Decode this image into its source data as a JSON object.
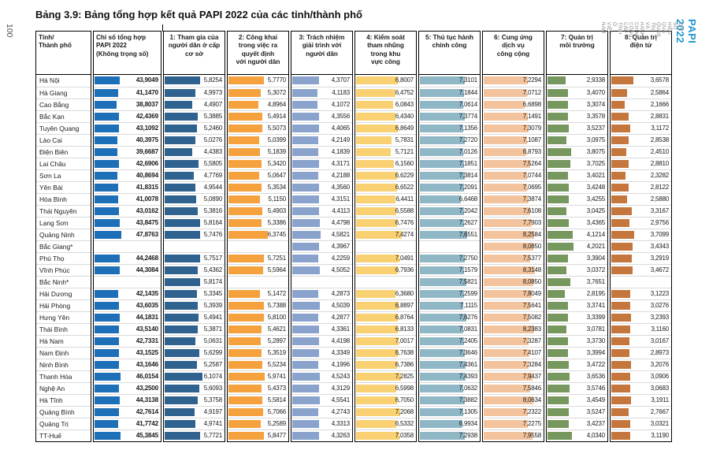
{
  "page": {
    "number": "100",
    "title": "Bảng 3.9: Bảng tổng hợp kết quả PAPI 2022 của các tỉnh/thành phố",
    "edge_title": "PAPI 2022",
    "edge_subtitle": "CHỈ SỐ HIỆU QUẢ QUẢN TRỊ VÀ HÀNH CHÍNH CÔNG CẤP TỈNH Ở VIỆT NAM"
  },
  "colors": {
    "edge_title": "#2196cd",
    "edge_subtitle": "#87898b",
    "table_border": "#000000",
    "row_divider": "#d9d9d9"
  },
  "chart_data": {
    "type": "table",
    "title": "Bảng 3.9: Bảng tổng hợp kết quả PAPI 2022 của các tỉnh/thành phố",
    "note": "Bars drawn per column; composite scored 0–80, sub-indices 0–10. Asterisk rows have partial data.",
    "row_header": "Tỉnh/\nThành phố",
    "columns": [
      {
        "key": "composite",
        "label": "Chỉ số tổng hợp\nPAPI 2022\n(Không trọng số)",
        "color": "#1d6fb8",
        "bar_max": 118,
        "align": "left"
      },
      {
        "key": "participation",
        "label": "1: Tham gia của\nngười dân ở cấp\ncơ sở",
        "color": "#2f628f",
        "bar_max": 9.9,
        "align": "center"
      },
      {
        "key": "transparency",
        "label": "2: Công khai\ntrong việc ra\nquyết định\nvới người dân",
        "color": "#f5a23e",
        "bar_max": 9.9,
        "align": "center"
      },
      {
        "key": "accountability",
        "label": "3: Trách nhiệm\ngiải trình với\nngười dân",
        "color": "#8aa3cd",
        "bar_max": 9.9,
        "align": "center"
      },
      {
        "key": "corruption-control",
        "label": "4: Kiểm soát\ntham nhũng\ntrong khu\nvực công",
        "color": "#f9d172",
        "bar_max": 9.9,
        "align": "center"
      },
      {
        "key": "admin-procedures",
        "label": "5: Thủ tục hành\nchính công",
        "color": "#8fb7c6",
        "bar_max": 9.9,
        "align": "center"
      },
      {
        "key": "public-services",
        "label": "6: Cung ứng\ndịch vụ\ncông cộng",
        "color": "#f2c39c",
        "bar_max": 9.9,
        "align": "center"
      },
      {
        "key": "environment",
        "label": "7: Quản trị\nmôi trường",
        "color": "#76975e",
        "bar_max": 9.9,
        "align": "center"
      },
      {
        "key": "e-governance",
        "label": "8: Quản trị\nđiện tử",
        "color": "#c4763c",
        "bar_max": 9.9,
        "align": "center"
      }
    ],
    "rows": [
      {
        "name": "Hà Nội",
        "values": [
          "43,9049",
          "5,8254",
          "5,7770",
          "4,3707",
          "6,8007",
          "7,3101",
          "7,2294",
          "2,9338",
          "3,6578"
        ]
      },
      {
        "name": "Hà Giang",
        "values": [
          "41,1470",
          "4,9973",
          "5,3072",
          "4,1183",
          "6,4752",
          "7,1844",
          "7,0712",
          "3,4070",
          "2,5864"
        ]
      },
      {
        "name": "Cao Bằng",
        "values": [
          "38,8037",
          "4,4907",
          "4,8964",
          "4,1072",
          "6,0843",
          "7,0614",
          "6,6898",
          "3,3074",
          "2,1666"
        ]
      },
      {
        "name": "Bắc Kạn",
        "values": [
          "42,4369",
          "5,3885",
          "5,4914",
          "4,3556",
          "6,4340",
          "7,3774",
          "7,1491",
          "3,3578",
          "2,8831"
        ]
      },
      {
        "name": "Tuyên Quang",
        "values": [
          "43,1092",
          "5,2460",
          "5,5073",
          "4,4065",
          "6,8649",
          "7,1356",
          "7,3079",
          "3,5237",
          "3,1172"
        ]
      },
      {
        "name": "Lào Cai",
        "values": [
          "40,3975",
          "5,0276",
          "5,0399",
          "4,2149",
          "5,7831",
          "7,2720",
          "7,1087",
          "3,0975",
          "2,8538"
        ]
      },
      {
        "name": "Điện Biên",
        "values": [
          "39,6687",
          "4,4383",
          "5,1839",
          "4,1839",
          "5,7121",
          "7,0126",
          "6,8793",
          "3,8075",
          "2,4510"
        ]
      },
      {
        "name": "Lai Châu",
        "values": [
          "42,6906",
          "5,5805",
          "5,3420",
          "4,3171",
          "6,1560",
          "7,1851",
          "7,5264",
          "3,7025",
          "2,8810"
        ]
      },
      {
        "name": "Sơn La",
        "values": [
          "40,8694",
          "4,7769",
          "5,0647",
          "4,2188",
          "6,6229",
          "7,3814",
          "7,0744",
          "3,4021",
          "2,3282"
        ]
      },
      {
        "name": "Yên Bái",
        "values": [
          "41,8315",
          "4,9544",
          "5,3534",
          "4,3560",
          "6,6522",
          "7,2091",
          "7,0695",
          "3,4248",
          "2,8122"
        ]
      },
      {
        "name": "Hòa Bình",
        "values": [
          "41,0078",
          "5,0890",
          "5,1150",
          "4,3151",
          "6,4411",
          "6,6468",
          "7,3874",
          "3,4255",
          "2,5880"
        ]
      },
      {
        "name": "Thái Nguyên",
        "values": [
          "43,0162",
          "5,3816",
          "5,4903",
          "4,4113",
          "6,5588",
          "7,2042",
          "7,6108",
          "3,0425",
          "3,3167"
        ]
      },
      {
        "name": "Lạng Sơn",
        "values": [
          "43,8475",
          "5,8164",
          "5,3386",
          "4,4798",
          "6,7476",
          "7,2627",
          "7,7903",
          "3,4365",
          "2,9756"
        ]
      },
      {
        "name": "Quảng Ninh",
        "values": [
          "47,8763",
          "5,7476",
          "6,3745",
          "4,5821",
          "7,4274",
          "7,6551",
          "8,2584",
          "4,1214",
          "3,7099"
        ]
      },
      {
        "name": "Bắc Giang*",
        "values": [
          null,
          null,
          null,
          "4,3967",
          null,
          null,
          "8,0850",
          "4,2021",
          "3,4343"
        ]
      },
      {
        "name": "Phú Thọ",
        "values": [
          "44,2468",
          "5,7517",
          "5,7251",
          "4,2259",
          "7,0491",
          "7,2750",
          "7,5377",
          "3,3904",
          "3,2919"
        ]
      },
      {
        "name": "Vĩnh Phúc",
        "values": [
          "44,3084",
          "5,4362",
          "5,5964",
          "4,5052",
          "6,7936",
          "7,1579",
          "8,3148",
          "3,0372",
          "3,4672"
        ]
      },
      {
        "name": "Bắc Ninh*",
        "values": [
          null,
          "5,8174",
          null,
          null,
          null,
          "7,5821",
          "8,0850",
          "3,7651",
          null
        ]
      },
      {
        "name": "Hải Dương",
        "values": [
          "42,1435",
          "5,3345",
          "5,1472",
          "4,2873",
          "6,3680",
          "7,2599",
          "7,8049",
          "2,8195",
          "3,1223"
        ]
      },
      {
        "name": "Hải Phòng",
        "values": [
          "43,6035",
          "5,3939",
          "5,7388",
          "4,5039",
          "6,8897",
          "7,1115",
          "7,5641",
          "3,3741",
          "3,0276"
        ]
      },
      {
        "name": "Hưng Yên",
        "values": [
          "44,1831",
          "5,4941",
          "5,8100",
          "4,2877",
          "6,8764",
          "7,6276",
          "7,5082",
          "3,3399",
          "3,2393"
        ]
      },
      {
        "name": "Thái Bình",
        "values": [
          "43,5140",
          "5,3871",
          "5,4621",
          "4,3361",
          "6,8133",
          "7,0831",
          "8,2383",
          "3,0781",
          "3,1160"
        ]
      },
      {
        "name": "Hà Nam",
        "values": [
          "42,7331",
          "5,0631",
          "5,2897",
          "4,4198",
          "7,0017",
          "7,2405",
          "7,3287",
          "3,3730",
          "3,0167"
        ]
      },
      {
        "name": "Nam Định",
        "values": [
          "43,1525",
          "5,6299",
          "5,3519",
          "4,3349",
          "6,7638",
          "7,3646",
          "7,4107",
          "3,3994",
          "2,8973"
        ]
      },
      {
        "name": "Ninh Bình",
        "values": [
          "43,1646",
          "5,2587",
          "5,5234",
          "4,1996",
          "6,7386",
          "7,4361",
          "7,3284",
          "3,4722",
          "3,2076"
        ]
      },
      {
        "name": "Thanh Hóa",
        "values": [
          "46,0154",
          "6,1074",
          "5,9741",
          "4,5243",
          "7,2825",
          "7,4393",
          "7,9437",
          "3,6536",
          "3,0906"
        ]
      },
      {
        "name": "Nghệ An",
        "values": [
          "43,2500",
          "5,6093",
          "5,4373",
          "4,3129",
          "6,5998",
          "7,0632",
          "7,5846",
          "3,5746",
          "3,0683"
        ]
      },
      {
        "name": "Hà Tĩnh",
        "values": [
          "44,3138",
          "5,3758",
          "5,5814",
          "4,5541",
          "6,7050",
          "7,3882",
          "8,0634",
          "3,4549",
          "3,1911"
        ]
      },
      {
        "name": "Quảng Bình",
        "values": [
          "42,7614",
          "4,9197",
          "5,7066",
          "4,2743",
          "7,2068",
          "7,1305",
          "7,2322",
          "3,5247",
          "2,7667"
        ]
      },
      {
        "name": "Quảng Trị",
        "values": [
          "41,7742",
          "4,9741",
          "5,2589",
          "4,3313",
          "6,5332",
          "6,9934",
          "7,2275",
          "3,4237",
          "3,0321"
        ]
      },
      {
        "name": "TT-Huế",
        "values": [
          "45,3845",
          "5,7721",
          "5,8477",
          "4,3263",
          "7,0358",
          "7,2938",
          "7,9558",
          "4,0340",
          "3,1190"
        ]
      }
    ]
  }
}
